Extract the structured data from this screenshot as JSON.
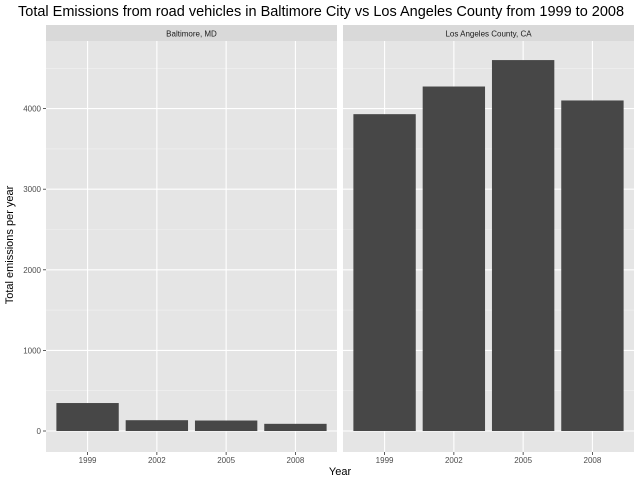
{
  "chart_data": {
    "type": "bar",
    "title": "Total Emissions from road vehicles in Baltimore City vs Los Angeles County from 1999 to 2008",
    "xlabel": "Year",
    "ylabel": "Total emissions per year",
    "categories": [
      "1999",
      "2002",
      "2005",
      "2008"
    ],
    "ylim": [
      0,
      4800
    ],
    "yticks": [
      0,
      1000,
      2000,
      3000,
      4000
    ],
    "grid": true,
    "panels": [
      {
        "name": "Baltimore, MD",
        "values": [
          347,
          134,
          130,
          89
        ]
      },
      {
        "name": "Los Angeles County, CA",
        "values": [
          3931,
          4274,
          4602,
          4101
        ]
      }
    ],
    "colors": {
      "bar": "#474747",
      "panel_bg": "#e5e5e5",
      "strip_bg": "#d9d9d9",
      "grid_major": "#ffffff",
      "grid_minor": "#f2f2f2",
      "text": "#000000",
      "tick_text": "#4d4d4d"
    }
  }
}
